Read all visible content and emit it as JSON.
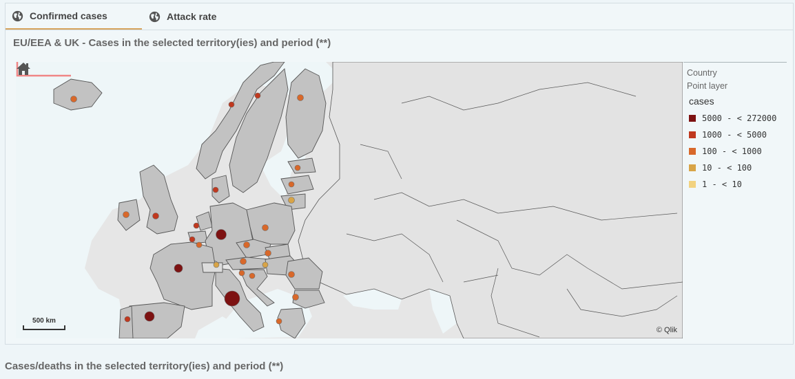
{
  "tabs": [
    {
      "label": "Confirmed cases",
      "active": true,
      "icon": "globe-icon"
    },
    {
      "label": "Attack rate",
      "active": false,
      "icon": "globe-icon"
    }
  ],
  "panel_title": "EU/EEA & UK - Cases in the selected territory(ies) and period (**)",
  "map": {
    "scale_label": "500 km",
    "attribution": "© Qlik",
    "home_icon": "home-icon",
    "points": [
      {
        "name": "Iceland",
        "bin": 2
      },
      {
        "name": "Norway",
        "bin": 1
      },
      {
        "name": "Sweden",
        "bin": 1
      },
      {
        "name": "Finland",
        "bin": 2
      },
      {
        "name": "Estonia",
        "bin": 2
      },
      {
        "name": "Latvia",
        "bin": 2
      },
      {
        "name": "Lithuania",
        "bin": 3
      },
      {
        "name": "Denmark",
        "bin": 1
      },
      {
        "name": "Ireland",
        "bin": 2
      },
      {
        "name": "United Kingdom",
        "bin": 1
      },
      {
        "name": "Netherlands",
        "bin": 1
      },
      {
        "name": "Belgium",
        "bin": 1
      },
      {
        "name": "Luxembourg",
        "bin": 2
      },
      {
        "name": "Germany",
        "bin": 0
      },
      {
        "name": "Poland",
        "bin": 2
      },
      {
        "name": "Czechia",
        "bin": 2
      },
      {
        "name": "Slovakia",
        "bin": 2
      },
      {
        "name": "Austria",
        "bin": 2
      },
      {
        "name": "Hungary",
        "bin": 3
      },
      {
        "name": "Slovenia",
        "bin": 2
      },
      {
        "name": "Croatia",
        "bin": 2
      },
      {
        "name": "Liechtenstein",
        "bin": 3
      },
      {
        "name": "France",
        "bin": 0
      },
      {
        "name": "Italy",
        "bin": 0
      },
      {
        "name": "Spain",
        "bin": 0
      },
      {
        "name": "Portugal",
        "bin": 1
      },
      {
        "name": "Romania",
        "bin": 2
      },
      {
        "name": "Bulgaria",
        "bin": 2
      },
      {
        "name": "Greece",
        "bin": 2
      }
    ]
  },
  "legend": {
    "layer_lines": [
      "Country",
      "Point layer"
    ],
    "title": "cases",
    "items": [
      {
        "label": "5000 - < 272000",
        "color": "#7d1212"
      },
      {
        "label": "1000 - < 5000",
        "color": "#c0391f"
      },
      {
        "label": "100 - < 1000",
        "color": "#d8682a"
      },
      {
        "label": "10 - < 100",
        "color": "#d8a447"
      },
      {
        "label": "1 - < 10",
        "color": "#f2d27f"
      }
    ]
  },
  "bottom_title": "Cases/deaths in the selected territory(ies) and period (**)"
}
